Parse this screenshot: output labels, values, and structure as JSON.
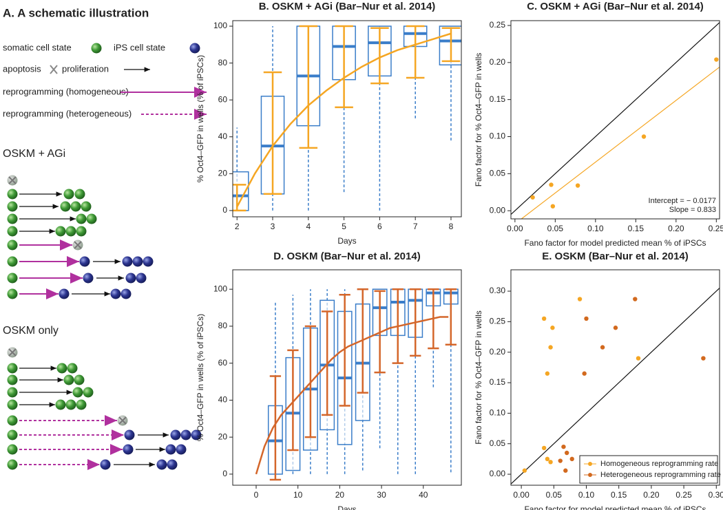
{
  "schematic": {
    "title": "A. A schematic illustration",
    "somatic": "somatic cell state",
    "ips": "iPS cell state",
    "apoptosis": "apoptosis",
    "proliferation": "proliferation",
    "homogeneous": "reprogramming (homogeneous)",
    "heterogeneous": "reprogramming (heterogeneous)",
    "agi": "OSKM + AGi",
    "only": "OSKM only"
  },
  "chart_data": [
    {
      "type": "box",
      "title": "B. OSKM + AGi (Bar–Nur et al. 2014)",
      "xlabel": "Days",
      "ylabel": "% Oct4–GFP in wells (% of iPSCs)",
      "box_color": "#3a7dc9",
      "mean_color": "#f5a623",
      "x": [
        2,
        3,
        4,
        5,
        6,
        7,
        8
      ],
      "min": [
        0,
        0,
        0,
        10,
        0,
        50,
        38
      ],
      "q1": [
        0,
        9,
        46,
        71,
        73,
        89,
        79
      ],
      "median": [
        8,
        35,
        73,
        89,
        91,
        96,
        92
      ],
      "q3": [
        21,
        62,
        100,
        100,
        100,
        100,
        100
      ],
      "max": [
        45,
        100,
        100,
        100,
        100,
        100,
        100
      ],
      "mean": [
        7,
        42,
        67,
        78,
        84,
        86,
        90
      ],
      "sd": [
        7,
        33,
        33,
        22,
        15,
        14,
        9
      ],
      "fit": {
        "x": [
          2,
          2.5,
          3,
          3.5,
          4,
          4.5,
          5,
          5.5,
          6,
          6.5,
          7,
          7.5,
          8
        ],
        "values": [
          2,
          20,
          35,
          47,
          57,
          65,
          72,
          78,
          83,
          87,
          90,
          93,
          96
        ]
      },
      "xlim": [
        1.88,
        8.29
      ],
      "ylim": [
        -3.4,
        103
      ],
      "xticks": [
        2,
        3,
        4,
        5,
        6,
        7,
        8
      ],
      "yticks": [
        0,
        20,
        40,
        60,
        80,
        100
      ]
    },
    {
      "type": "scatter",
      "title": "C. OSKM + AGi (Bar–Nur et al. 2014)",
      "xlabel": "Fano factor for model predicted mean % of iPSCs",
      "ylabel": "Fano factor for % Oct4–GFP in wells",
      "series": [
        {
          "color": "#f5a623",
          "x": [
            0.022,
            0.045,
            0.047,
            0.078,
            0.16,
            0.25
          ],
          "values": [
            0.018,
            0.035,
            0.006,
            0.034,
            0.1,
            0.204
          ]
        }
      ],
      "intercept": -0.0177,
      "slope": 0.833,
      "fit_color": "#f5a623",
      "annotations": [
        "Intercept = − 0.0177",
        "Slope = 0.833"
      ],
      "xlim": [
        -0.005,
        0.254
      ],
      "ylim": [
        -0.011,
        0.2565
      ],
      "xticks": [
        {
          "value": 0,
          "label": "0.00"
        },
        {
          "value": 0.05,
          "label": "0.05"
        },
        {
          "value": 0.1,
          "label": "0.10"
        },
        {
          "value": 0.15,
          "label": "0.15"
        },
        {
          "value": 0.2,
          "label": "0.20"
        },
        {
          "value": 0.25,
          "label": "0.25"
        }
      ],
      "yticks": [
        {
          "value": 0,
          "label": "0.00"
        },
        {
          "value": 0.05,
          "label": "0.05"
        },
        {
          "value": 0.1,
          "label": "0.10"
        },
        {
          "value": 0.15,
          "label": "0.15"
        },
        {
          "value": 0.2,
          "label": "0.20"
        },
        {
          "value": 0.25,
          "label": "0.25"
        }
      ]
    },
    {
      "type": "box",
      "title": "D. OSKM (Bar–Nur et al. 2014)",
      "xlabel": "Days",
      "ylabel": "% Oct4–GFP in wells (% of iPSCs)",
      "box_color": "#3a7dc9",
      "mean_color": "#d4662a",
      "x": [
        4.6,
        8.8,
        13,
        17,
        21.2,
        25.5,
        29.6,
        33.9,
        38.1,
        42.4,
        46.6
      ],
      "min": [
        0,
        0,
        0,
        0,
        0,
        2,
        14,
        0,
        0,
        47,
        1
      ],
      "q1": [
        0,
        2,
        13,
        24,
        16,
        29,
        75,
        75,
        74,
        91,
        92
      ],
      "median": [
        18,
        33,
        46,
        59,
        52,
        60,
        90,
        93,
        94,
        98,
        98
      ],
      "q3": [
        37,
        63,
        79,
        94,
        88,
        92,
        100,
        100,
        100,
        100,
        100
      ],
      "max": [
        93,
        97,
        100,
        100,
        100,
        100,
        100,
        100,
        100,
        100,
        100
      ],
      "mean": [
        25,
        40,
        50,
        60,
        67,
        72,
        77,
        80,
        82,
        84,
        85
      ],
      "sd": [
        28,
        27,
        30,
        28,
        30,
        28,
        22,
        20,
        18,
        16,
        15
      ],
      "fit": {
        "x": [
          0,
          2,
          4,
          6,
          8,
          10,
          12,
          14,
          16,
          18,
          20,
          22,
          24,
          26,
          28,
          30,
          32,
          34,
          36,
          38,
          40,
          42,
          44,
          46
        ],
        "values": [
          0,
          15,
          25,
          32,
          37,
          42,
          47,
          52,
          57,
          62,
          66,
          69,
          71,
          73,
          75,
          77,
          79,
          80,
          81,
          82,
          83,
          84,
          85,
          85
        ]
      },
      "xlim": [
        -5.6,
        49.1
      ],
      "ylim": [
        -6,
        110.5
      ],
      "xticks": [
        0,
        10,
        20,
        30,
        40
      ],
      "yticks": [
        0,
        20,
        40,
        60,
        80,
        100
      ]
    },
    {
      "type": "scatter",
      "title": "E. OSKM (Bar–Nur et al. 2014)",
      "xlabel": "Fano factor for model predicted mean % of iPSCs",
      "ylabel": "Fano factor for % Oct4–GFP in wells",
      "legend": "lower right",
      "series": [
        {
          "name": "Homogeneous reprogramming rate",
          "color": "#f5a623",
          "x": [
            0.005,
            0.035,
            0.04,
            0.045,
            0.035,
            0.048,
            0.045,
            0.04,
            0.09,
            0.18
          ],
          "values": [
            0.006,
            0.043,
            0.025,
            0.02,
            0.255,
            0.24,
            0.208,
            0.165,
            0.287,
            0.19
          ]
        },
        {
          "name": "Heterogeneous reprogramming rate",
          "color": "#d2691e",
          "x": [
            0.065,
            0.07,
            0.06,
            0.078,
            0.068,
            0.1,
            0.097,
            0.125,
            0.145,
            0.175,
            0.28
          ],
          "values": [
            0.045,
            0.035,
            0.022,
            0.025,
            0.006,
            0.255,
            0.165,
            0.208,
            0.24,
            0.287,
            0.19
          ]
        }
      ],
      "xlim": [
        -0.016,
        0.305
      ],
      "ylim": [
        -0.018,
        0.335
      ],
      "xticks": [
        {
          "value": 0,
          "label": "0.00"
        },
        {
          "value": 0.05,
          "label": "0.05"
        },
        {
          "value": 0.1,
          "label": "0.10"
        },
        {
          "value": 0.15,
          "label": "0.15"
        },
        {
          "value": 0.2,
          "label": "0.20"
        },
        {
          "value": 0.25,
          "label": "0.25"
        },
        {
          "value": 0.3,
          "label": "0.30"
        }
      ],
      "yticks": [
        {
          "value": 0,
          "label": "0.00"
        },
        {
          "value": 0.05,
          "label": "0.05"
        },
        {
          "value": 0.1,
          "label": "0.10"
        },
        {
          "value": 0.15,
          "label": "0.15"
        },
        {
          "value": 0.2,
          "label": "0.20"
        },
        {
          "value": 0.25,
          "label": "0.25"
        },
        {
          "value": 0.3,
          "label": "0.30"
        }
      ]
    }
  ]
}
